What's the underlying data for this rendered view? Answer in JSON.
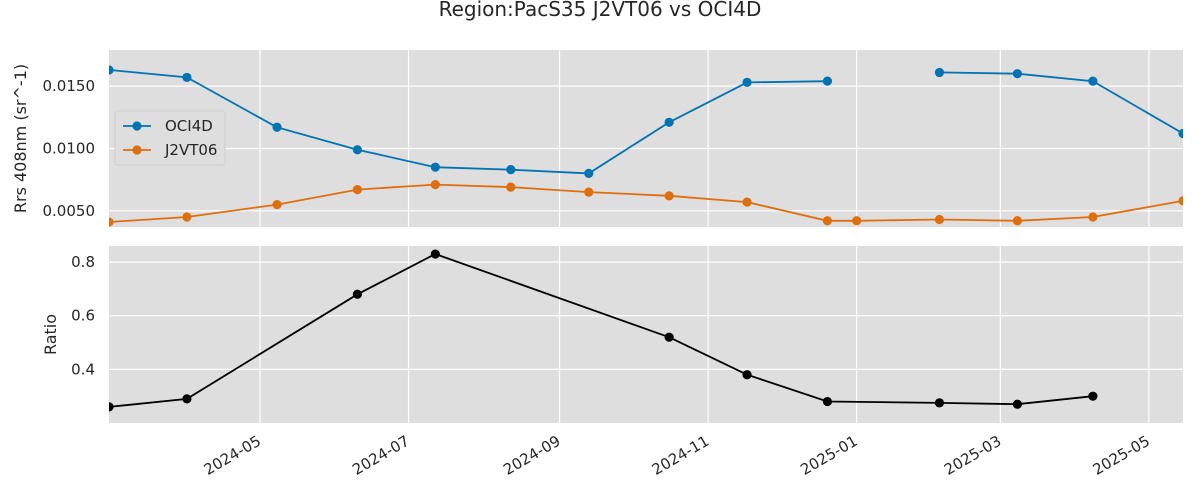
{
  "chart_data": {
    "type": "line",
    "title": "Region:PacS35 J2VT06 vs OCI4D",
    "x_range": [
      "2024-02-29",
      "2025-05-15"
    ],
    "x_ticks": [
      "2024-05",
      "2024-07",
      "2024-09",
      "2024-11",
      "2025-01",
      "2025-03",
      "2025-05"
    ],
    "grid": true,
    "panels": [
      {
        "ylabel": "Rrs 408nm (sr^-1)",
        "ylim": [
          0.0037,
          0.0179
        ],
        "yticks": [
          "0.0050",
          "0.0100",
          "0.0150"
        ],
        "legend_position": "center-left",
        "series": [
          {
            "name": "OCI4D",
            "color": "#0173b2",
            "points": [
              [
                "2024-02-29",
                0.0163
              ],
              [
                "2024-04-01",
                0.0157
              ],
              [
                "2024-05-08",
                0.0117
              ],
              [
                "2024-06-10",
                0.0099
              ],
              [
                "2024-07-12",
                0.0085
              ],
              [
                "2024-08-12",
                0.0083
              ],
              [
                "2024-09-13",
                0.008
              ],
              [
                "2024-10-16",
                0.0121
              ],
              [
                "2024-11-17",
                0.0153
              ],
              [
                "2024-12-20",
                0.0154
              ],
              null,
              [
                "2025-02-04",
                0.0161
              ],
              [
                "2025-03-08",
                0.016
              ],
              [
                "2025-04-08",
                0.0154
              ],
              [
                "2025-05-15",
                0.0112
              ]
            ]
          },
          {
            "name": "J2VT06",
            "color": "#de6f0e",
            "points": [
              [
                "2024-02-29",
                0.0041
              ],
              [
                "2024-04-01",
                0.0045
              ],
              [
                "2024-05-08",
                0.0055
              ],
              [
                "2024-06-10",
                0.0067
              ],
              [
                "2024-07-12",
                0.0071
              ],
              [
                "2024-08-12",
                0.0069
              ],
              [
                "2024-09-13",
                0.0065
              ],
              [
                "2024-10-16",
                0.0062
              ],
              [
                "2024-11-17",
                0.0057
              ],
              [
                "2024-12-20",
                0.0042
              ],
              [
                "2025-01-01",
                0.0042
              ],
              [
                "2025-02-04",
                0.0043
              ],
              [
                "2025-03-08",
                0.0042
              ],
              [
                "2025-04-08",
                0.0045
              ],
              [
                "2025-05-15",
                0.0058
              ]
            ]
          }
        ]
      },
      {
        "ylabel": "Ratio",
        "ylim": [
          0.2,
          0.86
        ],
        "yticks": [
          "0.4",
          "0.6",
          "0.8"
        ],
        "series": [
          {
            "name": "",
            "color": "#000000",
            "points": [
              [
                "2024-02-29",
                0.26
              ],
              [
                "2024-04-01",
                0.29
              ],
              [
                "2024-06-10",
                0.68
              ],
              [
                "2024-07-12",
                0.83
              ],
              [
                "2024-10-16",
                0.52
              ],
              [
                "2024-11-17",
                0.38
              ],
              [
                "2024-12-20",
                0.28
              ],
              [
                "2025-02-04",
                0.275
              ],
              [
                "2025-03-08",
                0.27
              ],
              [
                "2025-04-08",
                0.3
              ]
            ]
          }
        ]
      }
    ]
  }
}
